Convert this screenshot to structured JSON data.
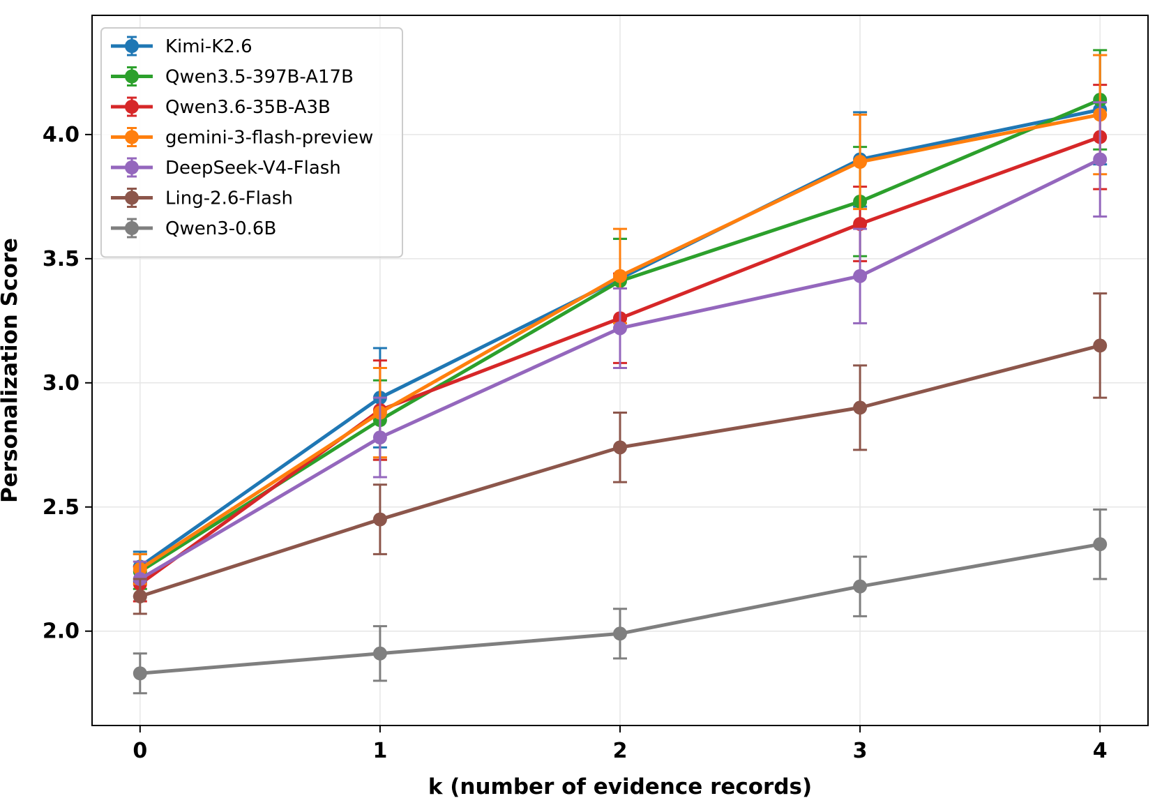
{
  "chart_data": {
    "type": "line",
    "title": "",
    "xlabel": "k (number of evidence records)",
    "ylabel": "Personalization Score",
    "x": [
      0,
      1,
      2,
      3,
      4
    ],
    "xticks": [
      "0",
      "1",
      "2",
      "3",
      "4"
    ],
    "yticks": [
      "2.0",
      "2.5",
      "3.0",
      "3.5",
      "4.0"
    ],
    "xlim": [
      -0.2,
      4.2
    ],
    "ylim": [
      1.62,
      4.48
    ],
    "grid": true,
    "legend_position": "top-left",
    "error_bars": true,
    "series": [
      {
        "name": "Kimi-K2.6",
        "color": "#1f77b4",
        "values": [
          2.26,
          2.94,
          3.42,
          3.9,
          4.1
        ],
        "errors": [
          0.06,
          0.2,
          0.16,
          0.19,
          0.22
        ]
      },
      {
        "name": "Qwen3.5-397B-A17B",
        "color": "#2ca02c",
        "values": [
          2.24,
          2.85,
          3.41,
          3.73,
          4.14
        ],
        "errors": [
          0.07,
          0.16,
          0.17,
          0.22,
          0.2
        ]
      },
      {
        "name": "Qwen3.6-35B-A3B",
        "color": "#d62728",
        "values": [
          2.19,
          2.89,
          3.26,
          3.64,
          3.99
        ],
        "errors": [
          0.07,
          0.2,
          0.18,
          0.15,
          0.21
        ]
      },
      {
        "name": "gemini-3-flash-preview",
        "color": "#ff7f0e",
        "values": [
          2.25,
          2.88,
          3.43,
          3.89,
          4.08
        ],
        "errors": [
          0.06,
          0.18,
          0.19,
          0.19,
          0.24
        ]
      },
      {
        "name": "DeepSeek-V4-Flash",
        "color": "#9467bd",
        "values": [
          2.21,
          2.78,
          3.22,
          3.43,
          3.9
        ],
        "errors": [
          0.07,
          0.16,
          0.16,
          0.19,
          0.23
        ]
      },
      {
        "name": "Ling-2.6-Flash",
        "color": "#8c564b",
        "values": [
          2.14,
          2.45,
          2.74,
          2.9,
          3.15
        ],
        "errors": [
          0.07,
          0.14,
          0.14,
          0.17,
          0.21
        ]
      },
      {
        "name": "Qwen3-0.6B",
        "color": "#7f7f7f",
        "values": [
          1.83,
          1.91,
          1.99,
          2.18,
          2.35
        ],
        "errors": [
          0.08,
          0.11,
          0.1,
          0.12,
          0.14
        ]
      }
    ]
  }
}
